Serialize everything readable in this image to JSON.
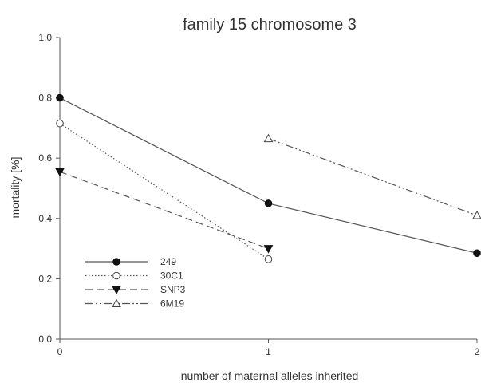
{
  "chart_data": {
    "type": "line",
    "title": "family 15 chromosome 3",
    "xlabel": "number of maternal alleles inherited",
    "ylabel": "mortality [%]",
    "xlim": [
      0,
      2
    ],
    "ylim": [
      0.0,
      1.0
    ],
    "x_ticks": [
      "0",
      "1",
      "2"
    ],
    "y_ticks": [
      "0.0",
      "0.2",
      "0.4",
      "0.6",
      "0.8",
      "1.0"
    ],
    "grid": false,
    "legend_position": "bottom-left",
    "series": [
      {
        "name": "249",
        "x": [
          0,
          1,
          2
        ],
        "values": [
          0.8,
          0.45,
          0.285
        ],
        "line": "solid",
        "marker": "filled-circle"
      },
      {
        "name": "30C1",
        "x": [
          0,
          1
        ],
        "values": [
          0.715,
          0.265
        ],
        "line": "dotted",
        "marker": "open-circle"
      },
      {
        "name": "SNP3",
        "x": [
          0,
          1
        ],
        "values": [
          0.555,
          0.3
        ],
        "line": "dashed",
        "marker": "filled-triangle-down"
      },
      {
        "name": "6M19",
        "x": [
          1,
          2
        ],
        "values": [
          0.665,
          0.41
        ],
        "line": "dash-dot-dot",
        "marker": "open-triangle-up"
      }
    ],
    "colors": {
      "line": "#555555",
      "axis": "#555555",
      "text": "#333333"
    }
  }
}
